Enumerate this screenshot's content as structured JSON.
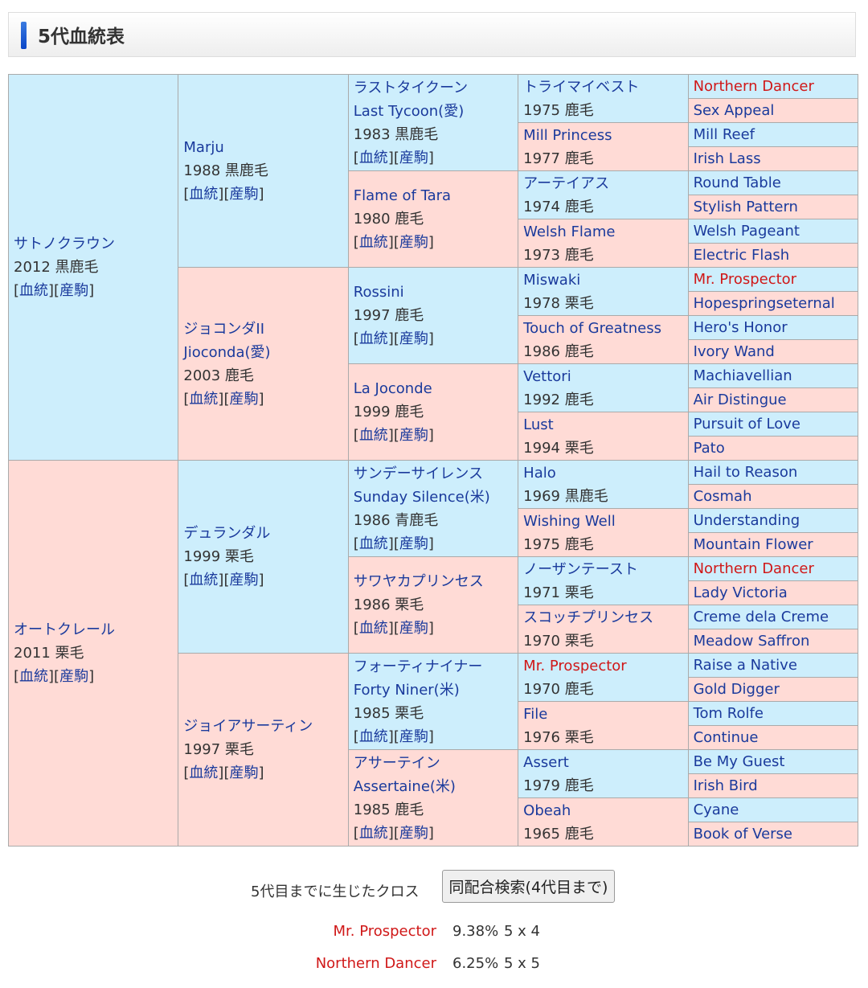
{
  "header": {
    "title": "5代血統表"
  },
  "links": {
    "pedigree": "血統",
    "progeny": "産駒"
  },
  "colors": {
    "male_bg": "#cdeefc",
    "female_bg": "#ffdbd6",
    "link": "#1a3a9c",
    "cross": "#d01818"
  },
  "gen1": [
    {
      "name": "サトノクラウン",
      "info": "2012 黒鹿毛"
    },
    {
      "name": "オートクレール",
      "info": "2011 栗毛"
    }
  ],
  "gen2": [
    {
      "name": "Marju",
      "info": "1988 黒鹿毛"
    },
    {
      "name": "ジョコンダII",
      "name_en": "Jioconda(愛)",
      "info": "2003 鹿毛"
    },
    {
      "name": "デュランダル",
      "info": "1999 栗毛"
    },
    {
      "name": "ジョイアサーティン",
      "info": "1997 栗毛"
    }
  ],
  "gen3": [
    {
      "name": "ラストタイクーン",
      "name_en": "Last Tycoon(愛)",
      "info": "1983 黒鹿毛"
    },
    {
      "name": "Flame of Tara",
      "info": "1980 鹿毛"
    },
    {
      "name": "Rossini",
      "info": "1997 鹿毛"
    },
    {
      "name": "La Joconde",
      "info": "1999 鹿毛"
    },
    {
      "name": "サンデーサイレンス",
      "name_en": "Sunday Silence(米)",
      "info": "1986 青鹿毛"
    },
    {
      "name": "サワヤカプリンセス",
      "info": "1986 栗毛"
    },
    {
      "name": "フォーティナイナー",
      "name_en": "Forty Niner(米)",
      "info": "1985 栗毛"
    },
    {
      "name": "アサーテイン",
      "name_en": "Assertaine(米)",
      "info": "1985 鹿毛"
    }
  ],
  "gen4": [
    {
      "name": "トライマイベスト",
      "info": "1975 鹿毛"
    },
    {
      "name": "Mill Princess",
      "info": "1977 鹿毛"
    },
    {
      "name": "アーテイアス",
      "info": "1974 鹿毛"
    },
    {
      "name": "Welsh Flame",
      "info": "1973 鹿毛"
    },
    {
      "name": "Miswaki",
      "info": "1978 栗毛"
    },
    {
      "name": "Touch of Greatness",
      "info": "1986 鹿毛"
    },
    {
      "name": "Vettori",
      "info": "1992 鹿毛"
    },
    {
      "name": "Lust",
      "info": "1994 栗毛"
    },
    {
      "name": "Halo",
      "info": "1969 黒鹿毛"
    },
    {
      "name": "Wishing Well",
      "info": "1975 鹿毛"
    },
    {
      "name": "ノーザンテースト",
      "info": "1971 栗毛"
    },
    {
      "name": "スコッチプリンセス",
      "info": "1970 栗毛"
    },
    {
      "name": "Mr. Prospector",
      "info": "1970 鹿毛",
      "cross": true
    },
    {
      "name": "File",
      "info": "1976 栗毛"
    },
    {
      "name": "Assert",
      "info": "1979 鹿毛"
    },
    {
      "name": "Obeah",
      "info": "1965 鹿毛"
    }
  ],
  "gen5": [
    {
      "name": "Northern Dancer",
      "cross": true
    },
    {
      "name": "Sex Appeal"
    },
    {
      "name": "Mill Reef"
    },
    {
      "name": "Irish Lass"
    },
    {
      "name": "Round Table"
    },
    {
      "name": "Stylish Pattern"
    },
    {
      "name": "Welsh Pageant"
    },
    {
      "name": "Electric Flash"
    },
    {
      "name": "Mr. Prospector",
      "cross": true
    },
    {
      "name": "Hopespringseternal"
    },
    {
      "name": "Hero's Honor"
    },
    {
      "name": "Ivory Wand"
    },
    {
      "name": "Machiavellian"
    },
    {
      "name": "Air Distingue"
    },
    {
      "name": "Pursuit of Love"
    },
    {
      "name": "Pato"
    },
    {
      "name": "Hail to Reason"
    },
    {
      "name": "Cosmah"
    },
    {
      "name": "Understanding"
    },
    {
      "name": "Mountain Flower"
    },
    {
      "name": "Northern Dancer",
      "cross": true
    },
    {
      "name": "Lady Victoria"
    },
    {
      "name": "Creme dela Creme"
    },
    {
      "name": "Meadow Saffron"
    },
    {
      "name": "Raise a Native"
    },
    {
      "name": "Gold Digger"
    },
    {
      "name": "Tom Rolfe"
    },
    {
      "name": "Continue"
    },
    {
      "name": "Be My Guest"
    },
    {
      "name": "Irish Bird"
    },
    {
      "name": "Cyane"
    },
    {
      "name": "Book of Verse"
    }
  ],
  "footer": {
    "cross_label": "5代目までに生じたクロス",
    "search_button": "同配合検索(4代目まで)",
    "crosses": [
      {
        "name": "Mr. Prospector",
        "percent": "9.38%",
        "pattern": "5 x 4"
      },
      {
        "name": "Northern Dancer",
        "percent": "6.25%",
        "pattern": "5 x 5"
      }
    ]
  }
}
